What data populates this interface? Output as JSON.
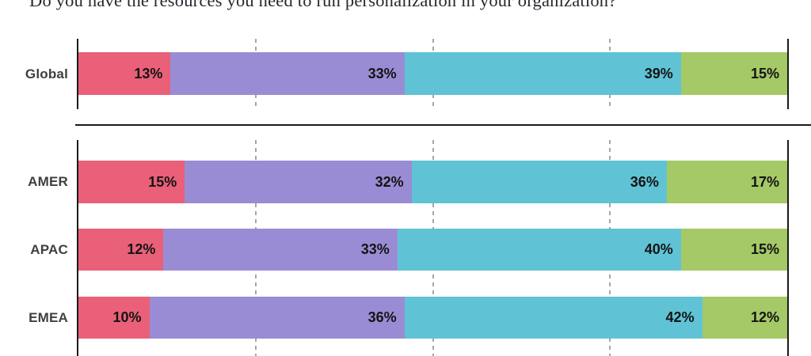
{
  "title": "Do you have the resources you need to run personalization in your organization?",
  "colors": {
    "title_text": "#26262e",
    "axis_line": "#1a1a1a",
    "gridline": "#a6a6a6",
    "value_text": "#141414",
    "row_label_text": "#3f3f3f"
  },
  "chart_data": [
    {
      "type": "bar",
      "orientation": "horizontal",
      "stacked": true,
      "unit": "%",
      "xlim": [
        0,
        100
      ],
      "gridlines_pct": [
        25,
        50,
        75
      ],
      "legend": "none (not visible in crop)",
      "series_colors": [
        "#e96078",
        "#9a8cd4",
        "#5fc3d5",
        "#a4c966"
      ],
      "rows": [
        {
          "category": "Global",
          "values": [
            13,
            33,
            39,
            15
          ],
          "display": [
            "13%",
            "33%",
            "39%",
            "15%"
          ]
        }
      ]
    },
    {
      "type": "bar",
      "orientation": "horizontal",
      "stacked": true,
      "unit": "%",
      "xlim": [
        0,
        100
      ],
      "gridlines_pct": [
        25,
        50,
        75
      ],
      "legend": "none (not visible in crop)",
      "series_colors": [
        "#e96078",
        "#9a8cd4",
        "#5fc3d5",
        "#a4c966"
      ],
      "rows": [
        {
          "category": "AMER",
          "values": [
            15,
            32,
            36,
            17
          ],
          "display": [
            "15%",
            "32%",
            "36%",
            "17%"
          ]
        },
        {
          "category": "APAC",
          "values": [
            12,
            33,
            40,
            15
          ],
          "display": [
            "12%",
            "33%",
            "40%",
            "15%"
          ]
        },
        {
          "category": "EMEA",
          "values": [
            10,
            36,
            42,
            12
          ],
          "display": [
            "10%",
            "36%",
            "42%",
            "12%"
          ]
        }
      ]
    }
  ]
}
